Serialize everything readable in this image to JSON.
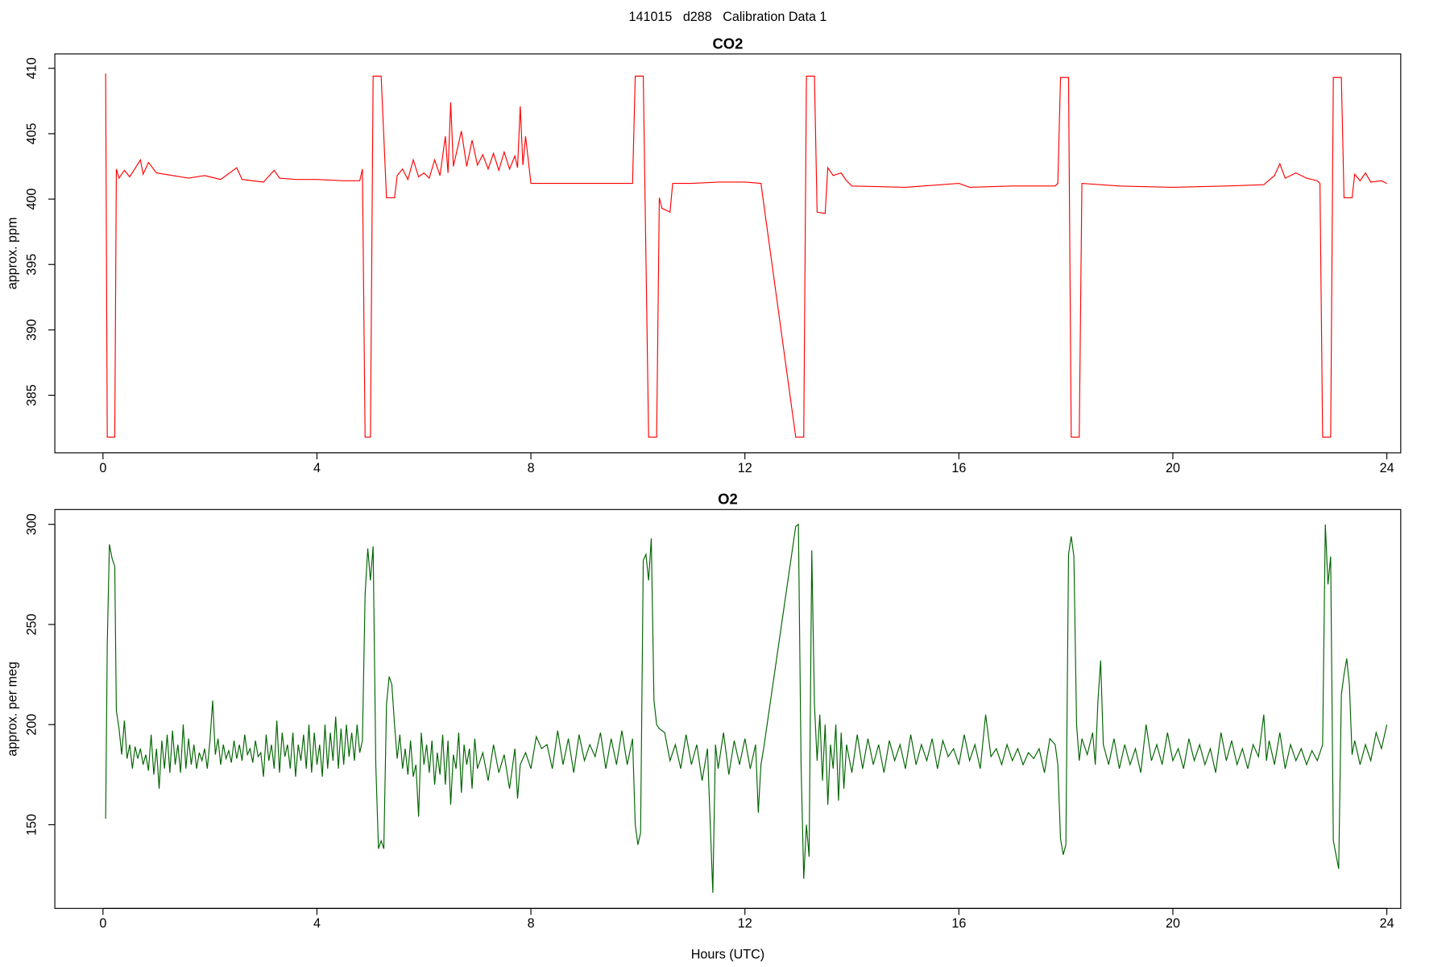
{
  "title": "141015   d288   Calibration Data 1",
  "chart_data": [
    {
      "type": "line",
      "title": "CO2",
      "ylabel": "approx. ppm",
      "color": "#ff0000",
      "xlim": [
        -0.9,
        24.26
      ],
      "xticks": [
        0,
        4,
        8,
        12,
        16,
        20,
        24
      ],
      "ylim": [
        380.6,
        411.1
      ],
      "yticks": [
        385,
        390,
        395,
        400,
        405,
        410
      ],
      "x": [
        0.05,
        0.08,
        0.22,
        0.25,
        0.3,
        0.4,
        0.5,
        0.7,
        0.75,
        0.85,
        1.0,
        1.3,
        1.6,
        1.9,
        2.2,
        2.5,
        2.6,
        3.0,
        3.2,
        3.3,
        3.6,
        4.0,
        4.5,
        4.8,
        4.85,
        4.9,
        5.0,
        5.05,
        5.2,
        5.3,
        5.45,
        5.5,
        5.6,
        5.7,
        5.8,
        5.9,
        6.0,
        6.1,
        6.2,
        6.3,
        6.4,
        6.45,
        6.5,
        6.55,
        6.7,
        6.8,
        6.9,
        7.0,
        7.1,
        7.2,
        7.3,
        7.4,
        7.5,
        7.6,
        7.7,
        7.75,
        7.8,
        7.85,
        7.9,
        8.0,
        9.0,
        9.9,
        9.95,
        10.1,
        10.2,
        10.35,
        10.4,
        10.45,
        10.6,
        10.65,
        11,
        11.5,
        12.0,
        12.3,
        12.95,
        13.1,
        13.15,
        13.3,
        13.35,
        13.5,
        13.55,
        13.65,
        13.8,
        13.9,
        14.0,
        15,
        16,
        16.2,
        17,
        17.8,
        17.85,
        17.9,
        18.05,
        18.1,
        18.25,
        18.3,
        19,
        20,
        21,
        21.7,
        21.9,
        22.0,
        22.1,
        22.3,
        22.5,
        22.7,
        22.75,
        22.8,
        22.95,
        23.0,
        23.15,
        23.2,
        23.35,
        23.4,
        23.5,
        23.6,
        23.7,
        23.9,
        24
      ],
      "values": [
        409.6,
        381.8,
        381.8,
        402.3,
        401.6,
        402.2,
        401.7,
        403,
        401.9,
        402.8,
        402,
        401.8,
        401.6,
        401.8,
        401.5,
        402.4,
        401.5,
        401.3,
        402.2,
        401.6,
        401.5,
        401.5,
        401.4,
        401.4,
        402.3,
        381.8,
        381.8,
        409.4,
        409.4,
        400.1,
        400.1,
        401.8,
        402.3,
        401.5,
        403,
        401.7,
        402,
        401.6,
        403,
        401.8,
        404.8,
        402,
        407.4,
        402.5,
        405.2,
        402.5,
        404.5,
        402.6,
        403.4,
        402.3,
        403.5,
        402.2,
        403.6,
        402.3,
        403.3,
        402.4,
        407.1,
        402.6,
        404.8,
        401.2,
        401.2,
        401.2,
        409.4,
        409.4,
        381.8,
        381.8,
        400.1,
        399.3,
        399.0,
        401.2,
        401.2,
        401.3,
        401.3,
        401.2,
        381.8,
        381.8,
        409.4,
        409.4,
        399.0,
        398.9,
        402.4,
        401.8,
        402.0,
        401.4,
        401.0,
        400.9,
        401.2,
        400.9,
        401.0,
        401.0,
        401.2,
        409.3,
        409.3,
        381.8,
        381.8,
        401.2,
        401.0,
        400.9,
        401.0,
        401.1,
        401.8,
        402.7,
        401.6,
        402.0,
        401.6,
        401.4,
        401.2,
        381.8,
        381.8,
        409.3,
        409.3,
        400.1,
        400.1,
        401.9,
        401.4,
        402,
        401.3,
        401.4,
        401.2
      ]
    },
    {
      "type": "line",
      "title": "O2",
      "ylabel": "approx. per meg",
      "xlabel": "Hours (UTC)",
      "color": "#006400",
      "xlim": [
        -0.9,
        24.26
      ],
      "xticks": [
        0,
        4,
        8,
        12,
        16,
        20,
        24
      ],
      "ylim": [
        108.2,
        307.4
      ],
      "yticks": [
        150,
        200,
        250,
        300
      ],
      "x": [
        0.05,
        0.08,
        0.12,
        0.17,
        0.22,
        0.25,
        0.3,
        0.35,
        0.4,
        0.45,
        0.5,
        0.55,
        0.6,
        0.65,
        0.7,
        0.75,
        0.8,
        0.85,
        0.9,
        0.95,
        1.0,
        1.05,
        1.1,
        1.15,
        1.2,
        1.25,
        1.3,
        1.35,
        1.4,
        1.45,
        1.5,
        1.55,
        1.6,
        1.65,
        1.7,
        1.75,
        1.8,
        1.85,
        1.9,
        1.95,
        2.0,
        2.05,
        2.1,
        2.15,
        2.2,
        2.25,
        2.3,
        2.35,
        2.4,
        2.45,
        2.5,
        2.55,
        2.6,
        2.65,
        2.7,
        2.75,
        2.8,
        2.85,
        2.9,
        2.95,
        3.0,
        3.05,
        3.1,
        3.15,
        3.2,
        3.25,
        3.3,
        3.35,
        3.4,
        3.45,
        3.5,
        3.55,
        3.6,
        3.65,
        3.7,
        3.75,
        3.8,
        3.85,
        3.9,
        3.95,
        4.0,
        4.05,
        4.1,
        4.15,
        4.2,
        4.25,
        4.3,
        4.35,
        4.4,
        4.45,
        4.5,
        4.55,
        4.6,
        4.65,
        4.7,
        4.75,
        4.8,
        4.85,
        4.9,
        4.95,
        5.0,
        5.05,
        5.1,
        5.15,
        5.2,
        5.25,
        5.3,
        5.35,
        5.4,
        5.45,
        5.5,
        5.55,
        5.6,
        5.65,
        5.7,
        5.75,
        5.8,
        5.85,
        5.9,
        5.95,
        6.0,
        6.05,
        6.1,
        6.15,
        6.2,
        6.25,
        6.3,
        6.35,
        6.4,
        6.45,
        6.5,
        6.55,
        6.6,
        6.65,
        6.7,
        6.75,
        6.8,
        6.85,
        6.9,
        6.95,
        7.0,
        7.1,
        7.2,
        7.3,
        7.4,
        7.5,
        7.6,
        7.7,
        7.75,
        7.8,
        7.9,
        8.0,
        8.1,
        8.2,
        8.3,
        8.4,
        8.5,
        8.6,
        8.7,
        8.8,
        8.9,
        9.0,
        9.1,
        9.2,
        9.3,
        9.4,
        9.5,
        9.6,
        9.7,
        9.8,
        9.9,
        9.95,
        10.0,
        10.05,
        10.1,
        10.15,
        10.2,
        10.25,
        10.3,
        10.35,
        10.4,
        10.5,
        10.6,
        10.7,
        10.8,
        10.9,
        11.0,
        11.1,
        11.2,
        11.3,
        11.4,
        11.45,
        11.5,
        11.6,
        11.7,
        11.8,
        11.9,
        12.0,
        12.1,
        12.2,
        12.25,
        12.3,
        12.35,
        12.95,
        13.0,
        13.05,
        13.1,
        13.15,
        13.2,
        13.25,
        13.3,
        13.35,
        13.4,
        13.45,
        13.5,
        13.55,
        13.6,
        13.65,
        13.7,
        13.75,
        13.8,
        13.85,
        13.9,
        14.0,
        14.1,
        14.2,
        14.3,
        14.4,
        14.5,
        14.6,
        14.7,
        14.8,
        14.9,
        15.0,
        15.1,
        15.2,
        15.3,
        15.4,
        15.5,
        15.6,
        15.7,
        15.8,
        15.9,
        16.0,
        16.1,
        16.2,
        16.3,
        16.4,
        16.5,
        16.6,
        16.7,
        16.8,
        16.9,
        17.0,
        17.1,
        17.2,
        17.3,
        17.4,
        17.5,
        17.6,
        17.7,
        17.8,
        17.85,
        17.9,
        17.95,
        18.0,
        18.05,
        18.1,
        18.15,
        18.2,
        18.25,
        18.3,
        18.4,
        18.5,
        18.55,
        18.6,
        18.65,
        18.7,
        18.8,
        18.9,
        19.0,
        19.1,
        19.2,
        19.3,
        19.4,
        19.5,
        19.6,
        19.7,
        19.8,
        19.9,
        20.0,
        20.1,
        20.2,
        20.3,
        20.4,
        20.5,
        20.6,
        20.7,
        20.8,
        20.9,
        21.0,
        21.1,
        21.2,
        21.3,
        21.4,
        21.5,
        21.6,
        21.7,
        21.75,
        21.8,
        21.9,
        22.0,
        22.1,
        22.2,
        22.3,
        22.4,
        22.5,
        22.6,
        22.7,
        22.8,
        22.85,
        22.9,
        22.95,
        23.0,
        23.05,
        23.1,
        23.15,
        23.2,
        23.25,
        23.3,
        23.35,
        23.4,
        23.5,
        23.6,
        23.7,
        23.8,
        23.9,
        24.0
      ],
      "values": [
        153,
        240,
        290,
        283,
        279,
        207,
        198,
        185,
        202,
        183,
        190,
        178,
        189,
        183,
        188,
        180,
        185,
        177,
        195,
        175,
        188,
        168,
        192,
        178,
        195,
        176,
        197,
        180,
        190,
        176,
        200,
        178,
        193,
        180,
        190,
        178,
        186,
        182,
        188,
        178,
        192,
        212,
        185,
        193,
        180,
        190,
        183,
        187,
        181,
        192,
        183,
        190,
        182,
        195,
        185,
        188,
        181,
        192,
        184,
        186,
        174,
        195,
        182,
        190,
        178,
        202,
        176,
        196,
        184,
        190,
        178,
        196,
        174,
        190,
        182,
        195,
        178,
        200,
        176,
        196,
        180,
        190,
        174,
        200,
        178,
        196,
        182,
        204,
        178,
        198,
        180,
        200,
        184,
        196,
        182,
        200,
        186,
        192,
        265,
        288,
        272,
        289,
        180,
        138,
        142,
        138,
        210,
        224,
        220,
        200,
        183,
        195,
        178,
        188,
        175,
        192,
        174,
        180,
        154,
        196,
        180,
        190,
        176,
        192,
        170,
        186,
        175,
        195,
        170,
        192,
        160,
        185,
        178,
        196,
        166,
        190,
        180,
        188,
        168,
        193,
        178,
        186,
        172,
        190,
        176,
        185,
        168,
        188,
        163,
        180,
        186,
        178,
        194,
        188,
        190,
        178,
        197,
        180,
        193,
        176,
        195,
        182,
        190,
        184,
        196,
        178,
        193,
        180,
        197,
        180,
        193,
        150,
        140,
        146,
        282,
        285,
        272,
        293,
        212,
        200,
        198,
        196,
        182,
        190,
        178,
        195,
        180,
        190,
        172,
        188,
        116,
        190,
        178,
        196,
        175,
        192,
        180,
        193,
        178,
        190,
        156,
        180,
        188,
        299,
        300,
        180,
        123,
        150,
        134,
        287,
        210,
        182,
        205,
        172,
        200,
        160,
        190,
        178,
        200,
        162,
        196,
        168,
        190,
        176,
        195,
        178,
        193,
        180,
        190,
        176,
        192,
        182,
        190,
        178,
        195,
        180,
        190,
        182,
        193,
        178,
        192,
        184,
        188,
        180,
        195,
        182,
        190,
        178,
        205,
        184,
        188,
        180,
        190,
        182,
        188,
        180,
        186,
        183,
        188,
        176,
        193,
        190,
        180,
        143,
        135,
        140,
        285,
        294,
        284,
        200,
        182,
        193,
        185,
        196,
        180,
        212,
        232,
        190,
        180,
        193,
        178,
        190,
        180,
        188,
        176,
        200,
        182,
        190,
        180,
        196,
        182,
        188,
        178,
        193,
        182,
        190,
        180,
        188,
        176,
        196,
        182,
        192,
        180,
        188,
        178,
        190,
        184,
        205,
        182,
        192,
        180,
        196,
        178,
        190,
        182,
        188,
        180,
        187,
        182,
        190,
        300,
        270,
        284,
        142,
        135,
        128,
        215,
        225,
        233,
        220,
        185,
        192,
        180,
        190,
        182,
        196,
        188,
        200
      ]
    }
  ]
}
